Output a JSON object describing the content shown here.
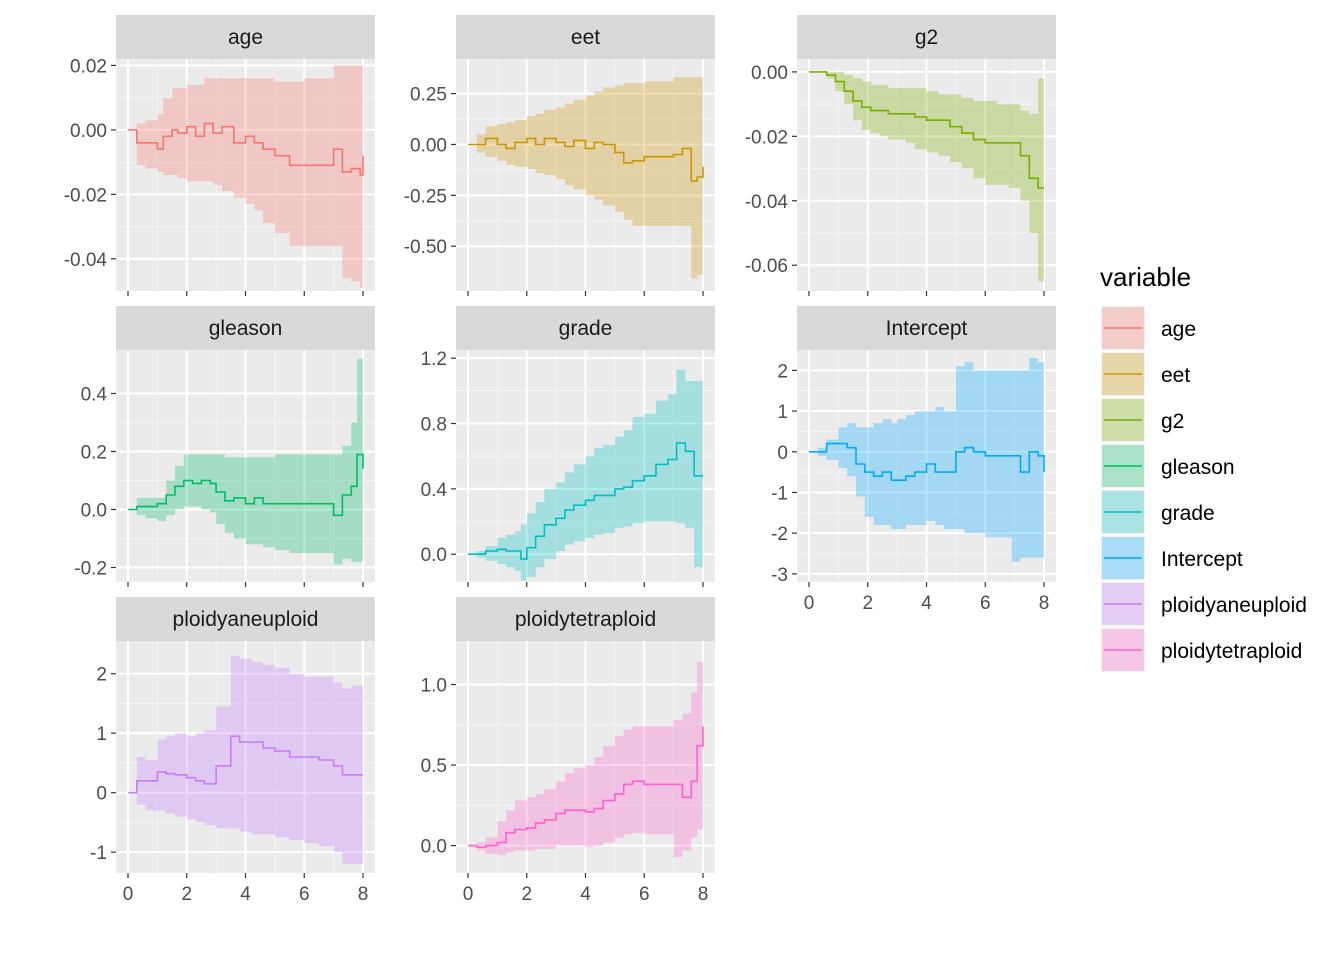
{
  "chart_data": {
    "type": "line",
    "x_ticks": [
      0,
      2,
      4,
      6,
      8
    ],
    "xlim": [
      0,
      8
    ],
    "grid": true,
    "legend": {
      "title": "variable",
      "placement": "right",
      "items": [
        {
          "label": "age",
          "color": "#F8766D"
        },
        {
          "label": "eet",
          "color": "#CD9600"
        },
        {
          "label": "g2",
          "color": "#7CAE00"
        },
        {
          "label": "gleason",
          "color": "#00BE67"
        },
        {
          "label": "grade",
          "color": "#00BFC4"
        },
        {
          "label": "Intercept",
          "color": "#00A9FF"
        },
        {
          "label": "ploidyaneuploid",
          "color": "#C77CFF"
        },
        {
          "label": "ploidytetraploid",
          "color": "#FF61CC"
        }
      ]
    },
    "panels": [
      {
        "name": "age",
        "color": "#F8766D",
        "ylim": [
          -0.05,
          0.022
        ],
        "y_ticks": [
          -0.04,
          -0.02,
          0.0,
          0.02
        ],
        "y_tick_labels": [
          "-0.04",
          "-0.02",
          "0.00",
          "0.02"
        ],
        "x": [
          0,
          0.3,
          0.6,
          1.0,
          1.2,
          1.5,
          1.7,
          2.0,
          2.3,
          2.6,
          2.9,
          3.2,
          3.6,
          4.0,
          4.3,
          4.6,
          5.0,
          5.5,
          6.0,
          6.5,
          7.0,
          7.3,
          7.6,
          7.9,
          8.0
        ],
        "estimate": [
          0,
          -0.004,
          -0.004,
          -0.006,
          -0.002,
          0.0,
          -0.001,
          0.001,
          -0.002,
          0.002,
          -0.001,
          0.001,
          -0.004,
          -0.002,
          -0.004,
          -0.006,
          -0.008,
          -0.011,
          -0.011,
          -0.011,
          -0.006,
          -0.013,
          -0.012,
          -0.014,
          -0.008
        ],
        "lower": [
          0,
          -0.011,
          -0.012,
          -0.013,
          -0.014,
          -0.014,
          -0.015,
          -0.016,
          -0.016,
          -0.016,
          -0.017,
          -0.019,
          -0.021,
          -0.023,
          -0.025,
          -0.029,
          -0.032,
          -0.036,
          -0.036,
          -0.036,
          -0.036,
          -0.046,
          -0.047,
          -0.049,
          -0.049
        ],
        "upper": [
          0,
          0.002,
          0.003,
          0.005,
          0.01,
          0.013,
          0.013,
          0.014,
          0.014,
          0.016,
          0.016,
          0.016,
          0.016,
          0.016,
          0.016,
          0.016,
          0.015,
          0.015,
          0.016,
          0.016,
          0.02,
          0.02,
          0.02,
          0.02,
          0.02
        ]
      },
      {
        "name": "eet",
        "color": "#CD9600",
        "ylim": [
          -0.72,
          0.42
        ],
        "y_ticks": [
          -0.5,
          -0.25,
          0.0,
          0.25
        ],
        "y_tick_labels": [
          "-0.50",
          "-0.25",
          "0.00",
          "0.25"
        ],
        "x": [
          0,
          0.3,
          0.6,
          1.0,
          1.3,
          1.6,
          2.0,
          2.3,
          2.6,
          3.0,
          3.3,
          3.6,
          4.0,
          4.3,
          4.6,
          5.0,
          5.3,
          5.6,
          6.0,
          6.5,
          7.0,
          7.3,
          7.6,
          7.8,
          8.0
        ],
        "estimate": [
          0,
          0.0,
          0.03,
          0.0,
          -0.02,
          0.01,
          0.03,
          0.0,
          0.03,
          0.01,
          -0.01,
          0.02,
          -0.02,
          0.01,
          0.0,
          -0.04,
          -0.09,
          -0.08,
          -0.06,
          -0.06,
          -0.05,
          -0.02,
          -0.18,
          -0.16,
          -0.11
        ],
        "lower": [
          0,
          -0.04,
          -0.06,
          -0.08,
          -0.1,
          -0.11,
          -0.12,
          -0.14,
          -0.15,
          -0.17,
          -0.2,
          -0.22,
          -0.25,
          -0.27,
          -0.3,
          -0.33,
          -0.37,
          -0.4,
          -0.4,
          -0.4,
          -0.4,
          -0.4,
          -0.66,
          -0.64,
          -0.64
        ],
        "upper": [
          0,
          0.05,
          0.09,
          0.1,
          0.11,
          0.12,
          0.14,
          0.15,
          0.17,
          0.18,
          0.2,
          0.22,
          0.24,
          0.26,
          0.28,
          0.29,
          0.3,
          0.3,
          0.31,
          0.31,
          0.33,
          0.33,
          0.33,
          0.33,
          0.32
        ]
      },
      {
        "name": "g2",
        "color": "#7CAE00",
        "ylim": [
          -0.068,
          0.004
        ],
        "y_ticks": [
          -0.06,
          -0.04,
          -0.02,
          0.0
        ],
        "y_tick_labels": [
          "-0.06",
          "-0.04",
          "-0.02",
          "0.00"
        ],
        "x": [
          0,
          0.3,
          0.6,
          0.9,
          1.2,
          1.5,
          1.8,
          2.1,
          2.4,
          2.7,
          3.0,
          3.3,
          3.6,
          4.0,
          4.4,
          4.8,
          5.2,
          5.6,
          6.0,
          6.4,
          6.8,
          7.2,
          7.5,
          7.8,
          8.0
        ],
        "estimate": [
          0,
          0.0,
          -0.001,
          -0.003,
          -0.006,
          -0.009,
          -0.011,
          -0.012,
          -0.012,
          -0.013,
          -0.013,
          -0.013,
          -0.014,
          -0.015,
          -0.015,
          -0.017,
          -0.019,
          -0.021,
          -0.022,
          -0.022,
          -0.022,
          -0.026,
          -0.033,
          -0.036,
          -0.036
        ],
        "lower": [
          0,
          0.0,
          -0.002,
          -0.006,
          -0.01,
          -0.015,
          -0.018,
          -0.019,
          -0.02,
          -0.021,
          -0.021,
          -0.022,
          -0.024,
          -0.025,
          -0.026,
          -0.028,
          -0.03,
          -0.033,
          -0.035,
          -0.035,
          -0.036,
          -0.04,
          -0.05,
          -0.065,
          -0.065
        ],
        "upper": [
          0,
          0.0,
          0.0,
          0.0,
          -0.001,
          -0.002,
          -0.003,
          -0.004,
          -0.004,
          -0.005,
          -0.005,
          -0.005,
          -0.005,
          -0.006,
          -0.007,
          -0.007,
          -0.008,
          -0.009,
          -0.009,
          -0.01,
          -0.01,
          -0.012,
          -0.013,
          -0.002,
          -0.002
        ]
      },
      {
        "name": "gleason",
        "color": "#00BE67",
        "ylim": [
          -0.25,
          0.55
        ],
        "y_ticks": [
          -0.2,
          0.0,
          0.2,
          0.4
        ],
        "y_tick_labels": [
          "-0.2",
          "0.0",
          "0.2",
          "0.4"
        ],
        "x": [
          0,
          0.3,
          0.6,
          1.0,
          1.3,
          1.6,
          1.9,
          2.2,
          2.5,
          2.8,
          3.0,
          3.3,
          3.6,
          4.0,
          4.3,
          4.6,
          5.0,
          5.5,
          6.0,
          6.5,
          7.0,
          7.3,
          7.6,
          7.8,
          8.0
        ],
        "estimate": [
          0,
          0.01,
          0.01,
          0.02,
          0.05,
          0.08,
          0.1,
          0.09,
          0.1,
          0.09,
          0.06,
          0.03,
          0.04,
          0.02,
          0.04,
          0.02,
          0.02,
          0.02,
          0.02,
          0.02,
          -0.02,
          0.05,
          0.08,
          0.19,
          0.14
        ],
        "lower": [
          0,
          -0.02,
          -0.03,
          -0.04,
          -0.02,
          0.0,
          0.01,
          0.01,
          0.0,
          -0.01,
          -0.05,
          -0.08,
          -0.1,
          -0.12,
          -0.12,
          -0.13,
          -0.14,
          -0.15,
          -0.15,
          -0.15,
          -0.19,
          -0.17,
          -0.18,
          -0.18,
          -0.17
        ],
        "upper": [
          0,
          0.04,
          0.04,
          0.04,
          0.1,
          0.15,
          0.19,
          0.19,
          0.19,
          0.19,
          0.19,
          0.18,
          0.18,
          0.18,
          0.18,
          0.18,
          0.19,
          0.19,
          0.19,
          0.19,
          0.19,
          0.22,
          0.3,
          0.52,
          0.52
        ]
      },
      {
        "name": "grade",
        "color": "#00BFC4",
        "ylim": [
          -0.17,
          1.25
        ],
        "y_ticks": [
          0.0,
          0.4,
          0.8,
          1.2
        ],
        "y_tick_labels": [
          "0.0",
          "0.4",
          "0.8",
          "1.2"
        ],
        "x": [
          0,
          0.3,
          0.6,
          1.0,
          1.3,
          1.6,
          1.8,
          2.0,
          2.3,
          2.6,
          3.0,
          3.3,
          3.6,
          4.0,
          4.3,
          4.6,
          5.0,
          5.3,
          5.6,
          6.0,
          6.4,
          6.8,
          7.1,
          7.4,
          7.7,
          8.0
        ],
        "estimate": [
          0,
          0.0,
          0.02,
          0.03,
          0.02,
          0.02,
          -0.03,
          0.04,
          0.11,
          0.18,
          0.22,
          0.27,
          0.3,
          0.33,
          0.36,
          0.36,
          0.4,
          0.41,
          0.45,
          0.48,
          0.55,
          0.58,
          0.68,
          0.63,
          0.48,
          0.48
        ],
        "lower": [
          0,
          -0.02,
          -0.04,
          -0.06,
          -0.08,
          -0.1,
          -0.16,
          -0.14,
          -0.08,
          -0.03,
          0.02,
          0.06,
          0.08,
          0.1,
          0.12,
          0.13,
          0.16,
          0.17,
          0.19,
          0.2,
          0.2,
          0.2,
          0.19,
          0.16,
          -0.08,
          -0.08
        ],
        "upper": [
          0,
          0.02,
          0.05,
          0.1,
          0.12,
          0.14,
          0.18,
          0.25,
          0.32,
          0.4,
          0.44,
          0.5,
          0.55,
          0.6,
          0.65,
          0.67,
          0.72,
          0.76,
          0.84,
          0.86,
          0.94,
          0.98,
          1.13,
          1.06,
          1.06,
          1.04
        ]
      },
      {
        "name": "Intercept",
        "color": "#00A9FF",
        "ylim": [
          -3.2,
          2.5
        ],
        "y_ticks": [
          -3,
          -2,
          -1,
          0,
          1,
          2
        ],
        "y_tick_labels": [
          "-3",
          "-2",
          "-1",
          "0",
          "1",
          "2"
        ],
        "x": [
          0,
          0.3,
          0.6,
          1.0,
          1.3,
          1.6,
          1.9,
          2.2,
          2.5,
          2.8,
          3.0,
          3.3,
          3.6,
          4.0,
          4.3,
          4.6,
          5.0,
          5.3,
          5.6,
          6.0,
          6.5,
          6.9,
          7.2,
          7.5,
          7.8,
          8.0
        ],
        "estimate": [
          0,
          0.0,
          0.2,
          0.2,
          0.1,
          -0.3,
          -0.5,
          -0.6,
          -0.5,
          -0.7,
          -0.7,
          -0.6,
          -0.5,
          -0.3,
          -0.5,
          -0.5,
          0.0,
          0.1,
          0.0,
          -0.1,
          -0.1,
          -0.1,
          -0.5,
          0.0,
          -0.1,
          -0.5
        ],
        "lower": [
          0,
          -0.1,
          -0.2,
          -0.4,
          -0.6,
          -1.1,
          -1.6,
          -1.8,
          -1.8,
          -1.9,
          -1.9,
          -1.8,
          -1.8,
          -1.7,
          -1.8,
          -1.9,
          -1.9,
          -2.0,
          -2.0,
          -2.1,
          -2.1,
          -2.7,
          -2.6,
          -2.6,
          -2.6,
          -2.6
        ],
        "upper": [
          0,
          0.1,
          0.3,
          0.6,
          0.7,
          0.6,
          0.6,
          0.7,
          0.8,
          0.7,
          0.8,
          0.9,
          1.0,
          1.0,
          1.1,
          1.0,
          2.1,
          2.2,
          2.0,
          2.0,
          2.0,
          2.0,
          2.0,
          2.3,
          2.2,
          2.1
        ]
      },
      {
        "name": "ploidyaneuploid",
        "color": "#C77CFF",
        "ylim": [
          -1.35,
          2.55
        ],
        "y_ticks": [
          -1,
          0,
          1,
          2
        ],
        "y_tick_labels": [
          "-1",
          "0",
          "1",
          "2"
        ],
        "x": [
          0,
          0.3,
          0.6,
          1.0,
          1.3,
          1.6,
          2.0,
          2.3,
          2.6,
          3.0,
          3.5,
          3.8,
          4.2,
          4.6,
          5.0,
          5.5,
          6.0,
          6.5,
          7.0,
          7.3,
          7.6,
          8.0
        ],
        "estimate": [
          0,
          0.2,
          0.2,
          0.35,
          0.32,
          0.3,
          0.25,
          0.2,
          0.15,
          0.45,
          0.95,
          0.85,
          0.85,
          0.75,
          0.7,
          0.6,
          0.6,
          0.55,
          0.45,
          0.3,
          0.3,
          0.3
        ],
        "lower": [
          0,
          -0.2,
          -0.3,
          -0.3,
          -0.35,
          -0.4,
          -0.45,
          -0.5,
          -0.55,
          -0.6,
          -0.6,
          -0.65,
          -0.7,
          -0.7,
          -0.75,
          -0.8,
          -0.85,
          -0.9,
          -1.0,
          -1.2,
          -1.2,
          -1.15
        ],
        "upper": [
          0,
          0.6,
          0.55,
          0.9,
          0.95,
          1.0,
          0.95,
          1.0,
          1.05,
          1.45,
          2.3,
          2.25,
          2.2,
          2.15,
          2.1,
          2.0,
          1.95,
          1.95,
          1.85,
          1.75,
          1.8,
          1.8
        ]
      },
      {
        "name": "ploidytetraploid",
        "color": "#FF61CC",
        "ylim": [
          -0.17,
          1.27
        ],
        "y_ticks": [
          0.0,
          0.5,
          1.0
        ],
        "y_tick_labels": [
          "0.0",
          "0.5",
          "1.0"
        ],
        "x": [
          0,
          0.3,
          0.6,
          1.0,
          1.3,
          1.6,
          2.0,
          2.3,
          2.6,
          3.0,
          3.3,
          3.6,
          4.0,
          4.3,
          4.6,
          5.0,
          5.3,
          5.6,
          6.0,
          6.5,
          7.0,
          7.3,
          7.6,
          7.8,
          8.0
        ],
        "estimate": [
          0,
          -0.01,
          0.0,
          0.02,
          0.08,
          0.1,
          0.11,
          0.14,
          0.16,
          0.2,
          0.22,
          0.22,
          0.21,
          0.23,
          0.28,
          0.32,
          0.38,
          0.4,
          0.38,
          0.38,
          0.38,
          0.3,
          0.4,
          0.62,
          0.74
        ],
        "lower": [
          0,
          -0.03,
          -0.05,
          -0.06,
          -0.04,
          -0.03,
          -0.03,
          -0.02,
          -0.02,
          0.0,
          0.0,
          0.0,
          -0.01,
          0.0,
          0.02,
          0.05,
          0.07,
          0.08,
          0.07,
          0.07,
          -0.07,
          -0.03,
          0.05,
          0.1,
          0.1
        ],
        "upper": [
          0,
          0.02,
          0.05,
          0.15,
          0.22,
          0.28,
          0.3,
          0.32,
          0.35,
          0.4,
          0.45,
          0.48,
          0.5,
          0.55,
          0.62,
          0.68,
          0.72,
          0.74,
          0.74,
          0.74,
          0.78,
          0.82,
          0.95,
          1.14,
          1.14
        ]
      }
    ]
  }
}
